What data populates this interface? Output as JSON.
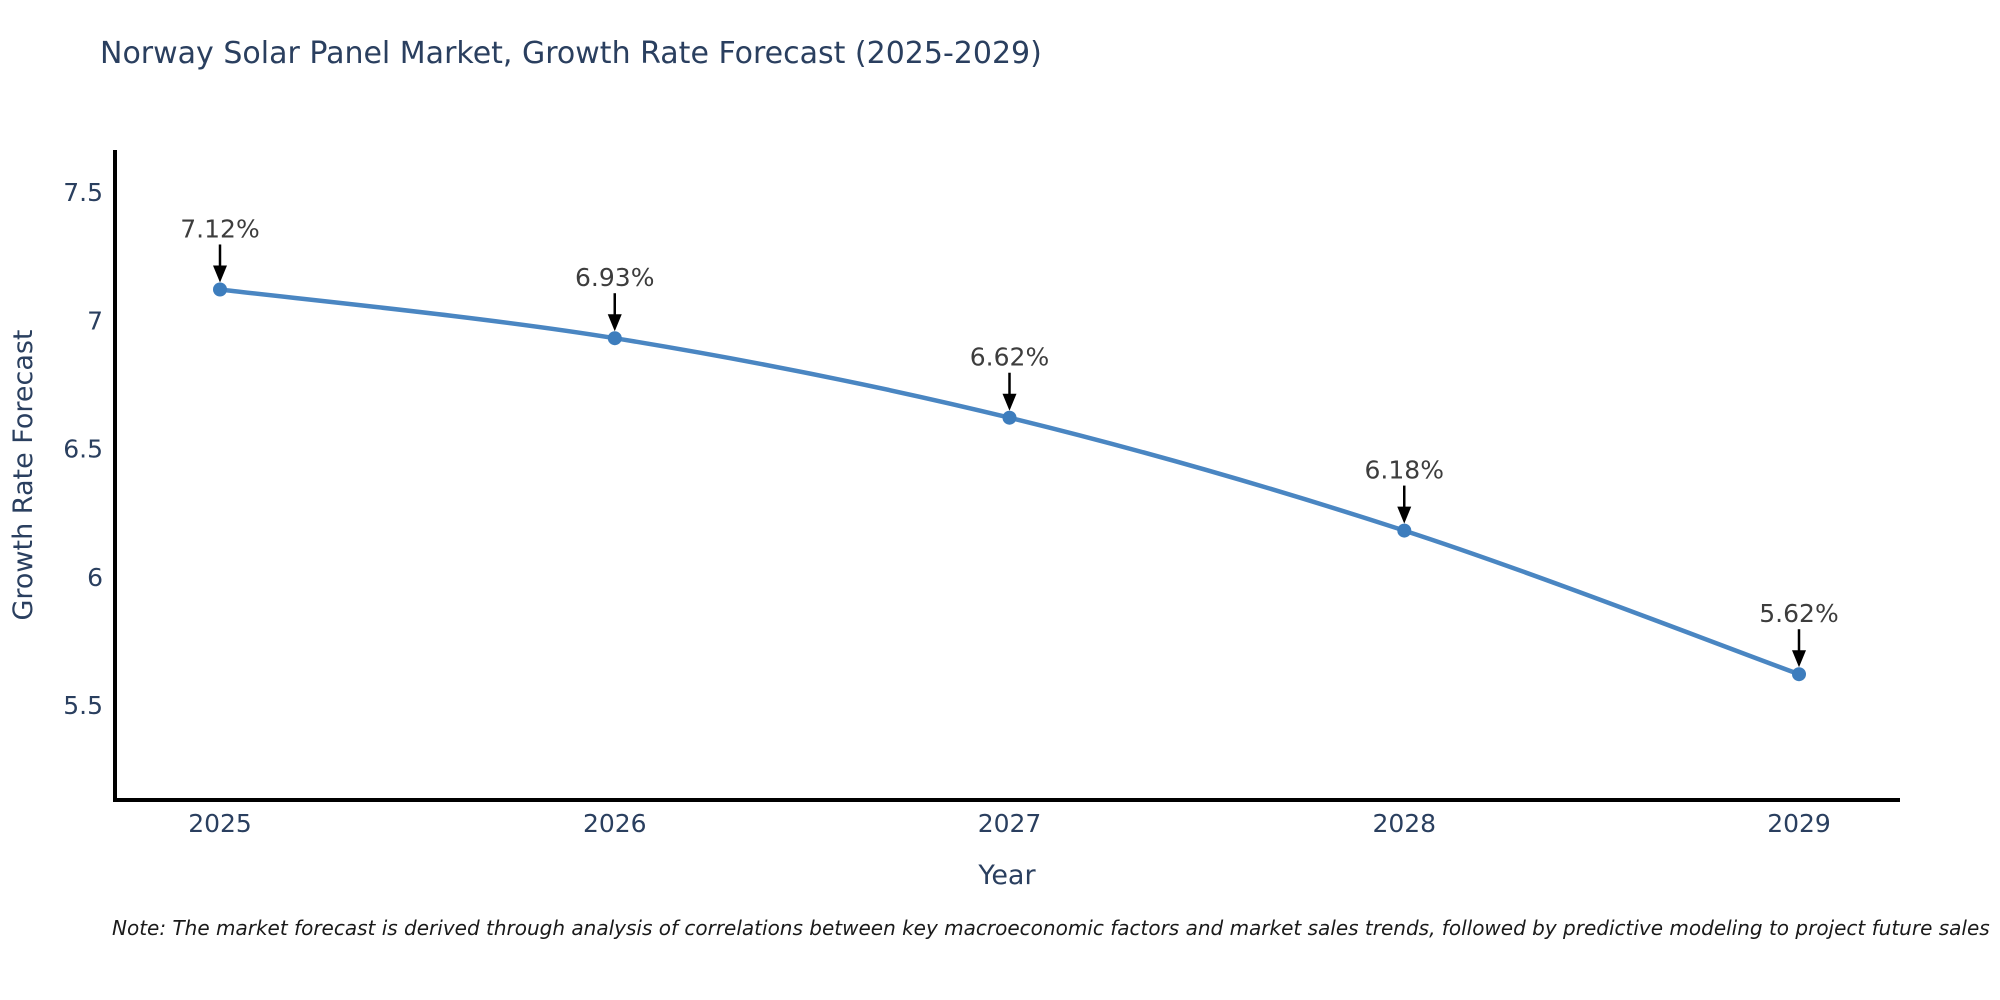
{
  "chart_data": {
    "type": "line",
    "title": "Norway Solar Panel Market, Growth Rate Forecast (2025-2029)",
    "xlabel": "Year",
    "ylabel": "Growth Rate Forecast",
    "x": [
      2025,
      2026,
      2027,
      2028,
      2029
    ],
    "values": [
      7.12,
      6.93,
      6.62,
      6.18,
      5.62
    ],
    "point_labels": [
      "7.12%",
      "6.93%",
      "6.62%",
      "6.18%",
      "5.62%"
    ],
    "x_tick_labels": [
      "2025",
      "2026",
      "2027",
      "2028",
      "2029"
    ],
    "y_ticks": [
      7.5,
      7,
      6.5,
      6,
      5.5
    ],
    "y_tick_labels": [
      "7.5",
      "7",
      "6.5",
      "6",
      "5.5"
    ],
    "ylim": [
      5.12,
      7.7
    ],
    "grid": false,
    "legend": false,
    "line_shape": "spline",
    "annotations": "value labels with downward arrows above each point",
    "colors": {
      "line": "#4a86c2",
      "marker": "#3d7dbd",
      "axis": "#000000",
      "tick_text": "#2a3f5f",
      "title_text": "#2a3f5f",
      "annotation_text": "#3d3d3d",
      "arrow": "#000000",
      "background": "#ffffff"
    }
  },
  "footnote": "Note: The market forecast is derived through analysis of correlations between key macroeconomic factors and market sales trends, followed by predictive modeling to project future sales"
}
